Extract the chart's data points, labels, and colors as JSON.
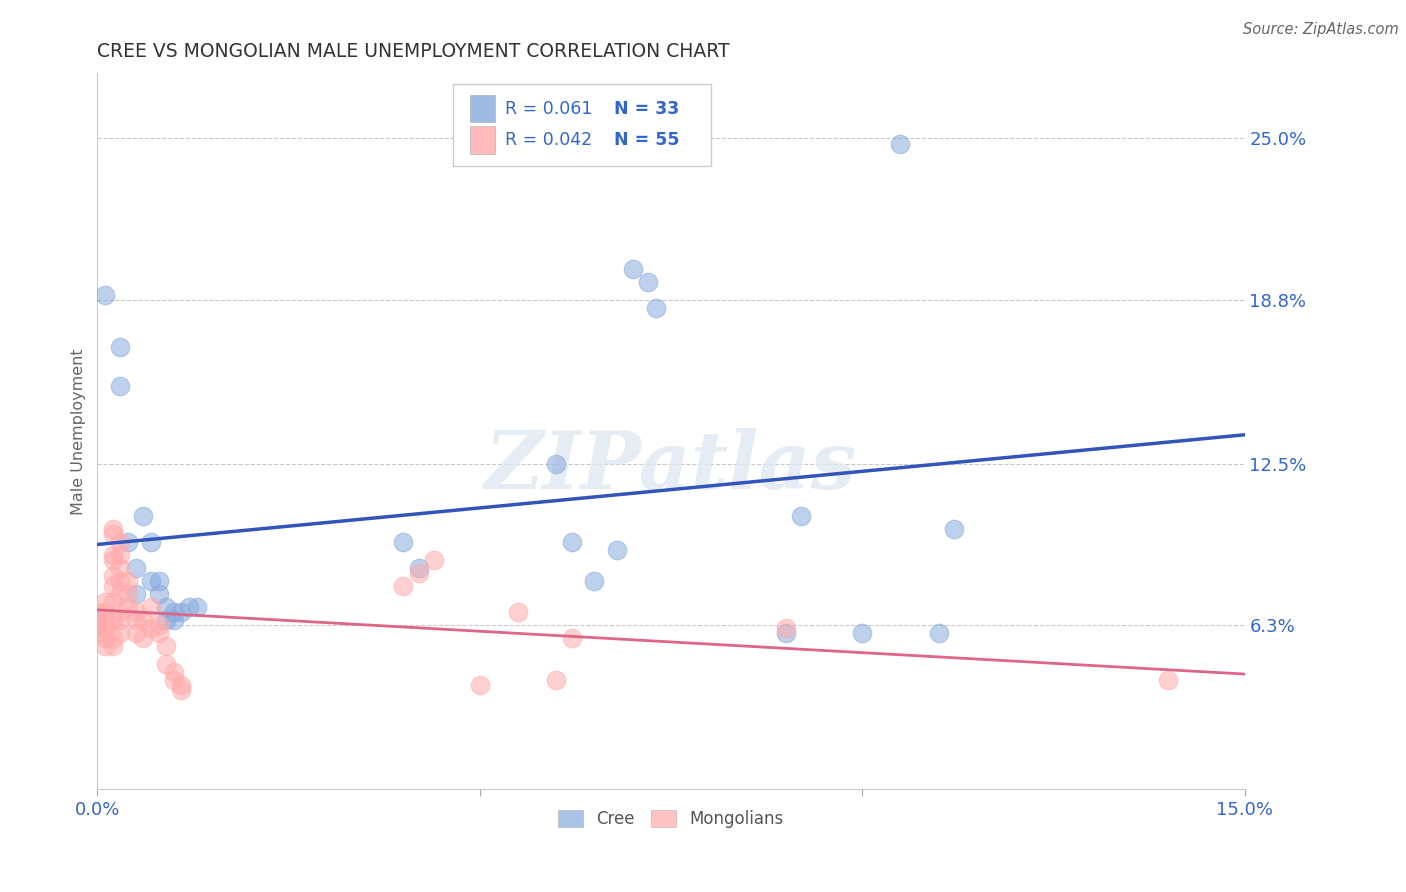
{
  "title": "CREE VS MONGOLIAN MALE UNEMPLOYMENT CORRELATION CHART",
  "source": "Source: ZipAtlas.com",
  "ylabel": "Male Unemployment",
  "xlim": [
    0.0,
    0.15
  ],
  "ylim": [
    0.0,
    0.275
  ],
  "ytick_vals": [
    0.063,
    0.125,
    0.188,
    0.25
  ],
  "yticklabels": [
    "6.3%",
    "12.5%",
    "18.8%",
    "25.0%"
  ],
  "xtick_vals": [
    0.0,
    0.05,
    0.1,
    0.15
  ],
  "xticklabels": [
    "0.0%",
    "",
    "",
    "15.0%"
  ],
  "cree_color": "#88aadd",
  "mongolian_color": "#ffaaaa",
  "cree_line_color": "#3355bb",
  "mongolian_line_color": "#dd6688",
  "cree_label": "Cree",
  "mongolian_label": "Mongolians",
  "cree_R": "0.061",
  "cree_N": "33",
  "mongolian_R": "0.042",
  "mongolian_N": "55",
  "legend_text_color": "#3366cc",
  "watermark_text": "ZIPatlas",
  "bg_color": "#ffffff",
  "cree_points": [
    [
      0.001,
      0.19
    ],
    [
      0.003,
      0.155
    ],
    [
      0.003,
      0.17
    ],
    [
      0.004,
      0.095
    ],
    [
      0.005,
      0.085
    ],
    [
      0.005,
      0.075
    ],
    [
      0.006,
      0.105
    ],
    [
      0.007,
      0.095
    ],
    [
      0.007,
      0.08
    ],
    [
      0.008,
      0.075
    ],
    [
      0.008,
      0.08
    ],
    [
      0.009,
      0.07
    ],
    [
      0.009,
      0.065
    ],
    [
      0.01,
      0.065
    ],
    [
      0.01,
      0.068
    ],
    [
      0.011,
      0.068
    ],
    [
      0.012,
      0.07
    ],
    [
      0.013,
      0.07
    ],
    [
      0.04,
      0.095
    ],
    [
      0.042,
      0.085
    ],
    [
      0.06,
      0.125
    ],
    [
      0.062,
      0.095
    ],
    [
      0.065,
      0.08
    ],
    [
      0.068,
      0.092
    ],
    [
      0.07,
      0.2
    ],
    [
      0.072,
      0.195
    ],
    [
      0.073,
      0.185
    ],
    [
      0.09,
      0.06
    ],
    [
      0.092,
      0.105
    ],
    [
      0.1,
      0.06
    ],
    [
      0.105,
      0.248
    ],
    [
      0.11,
      0.06
    ],
    [
      0.112,
      0.1
    ]
  ],
  "mongolian_points": [
    [
      0.0,
      0.065
    ],
    [
      0.0,
      0.063
    ],
    [
      0.0,
      0.068
    ],
    [
      0.0,
      0.06
    ],
    [
      0.001,
      0.062
    ],
    [
      0.001,
      0.065
    ],
    [
      0.001,
      0.068
    ],
    [
      0.001,
      0.072
    ],
    [
      0.001,
      0.058
    ],
    [
      0.001,
      0.055
    ],
    [
      0.002,
      0.078
    ],
    [
      0.002,
      0.082
    ],
    [
      0.002,
      0.09
    ],
    [
      0.002,
      0.098
    ],
    [
      0.002,
      0.1
    ],
    [
      0.002,
      0.088
    ],
    [
      0.002,
      0.072
    ],
    [
      0.002,
      0.065
    ],
    [
      0.002,
      0.058
    ],
    [
      0.002,
      0.055
    ],
    [
      0.003,
      0.068
    ],
    [
      0.003,
      0.075
    ],
    [
      0.003,
      0.08
    ],
    [
      0.003,
      0.085
    ],
    [
      0.003,
      0.09
    ],
    [
      0.003,
      0.095
    ],
    [
      0.003,
      0.065
    ],
    [
      0.003,
      0.06
    ],
    [
      0.004,
      0.07
    ],
    [
      0.004,
      0.075
    ],
    [
      0.004,
      0.08
    ],
    [
      0.005,
      0.06
    ],
    [
      0.005,
      0.065
    ],
    [
      0.005,
      0.068
    ],
    [
      0.006,
      0.058
    ],
    [
      0.006,
      0.065
    ],
    [
      0.007,
      0.062
    ],
    [
      0.007,
      0.07
    ],
    [
      0.008,
      0.063
    ],
    [
      0.008,
      0.06
    ],
    [
      0.009,
      0.055
    ],
    [
      0.009,
      0.048
    ],
    [
      0.01,
      0.045
    ],
    [
      0.01,
      0.042
    ],
    [
      0.011,
      0.04
    ],
    [
      0.011,
      0.038
    ],
    [
      0.04,
      0.078
    ],
    [
      0.042,
      0.083
    ],
    [
      0.044,
      0.088
    ],
    [
      0.05,
      0.04
    ],
    [
      0.055,
      0.068
    ],
    [
      0.06,
      0.042
    ],
    [
      0.062,
      0.058
    ],
    [
      0.09,
      0.062
    ],
    [
      0.14,
      0.042
    ]
  ]
}
